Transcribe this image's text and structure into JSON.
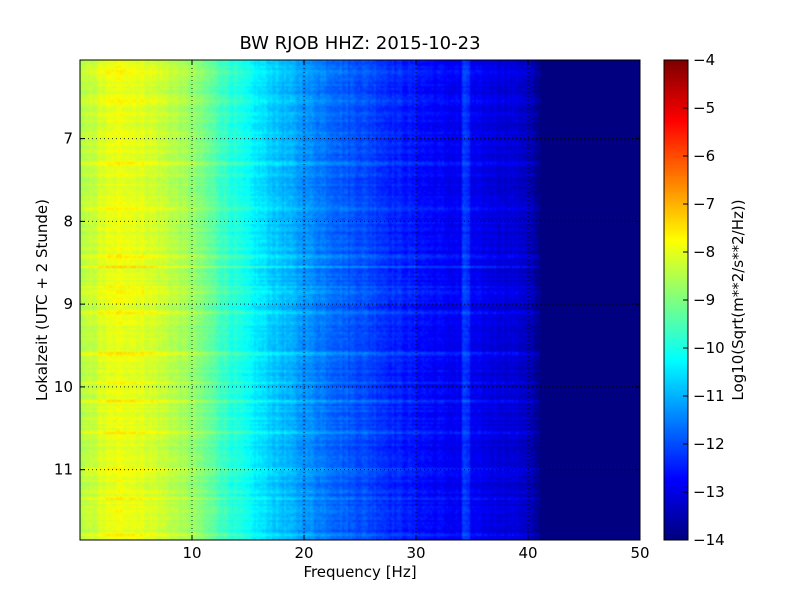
{
  "chart_data": {
    "type": "heatmap",
    "title": "BW RJOB HHZ: 2015-10-23",
    "xlabel": "Frequency [Hz]",
    "ylabel": "Lokalzeit (UTC + 2 Stunde)",
    "xlim": [
      0,
      50
    ],
    "ylim": [
      11.85,
      6.05
    ],
    "y_inverted": true,
    "x_ticks": [
      10,
      20,
      30,
      40,
      50
    ],
    "x_tick_labels": [
      "10",
      "20",
      "30",
      "40",
      "50"
    ],
    "y_ticks": [
      7,
      8,
      9,
      10,
      11
    ],
    "y_tick_labels": [
      "7",
      "8",
      "9",
      "10",
      "11"
    ],
    "grid": true,
    "colormap": "jet",
    "colorbar": {
      "label": "Log10(Sqrt(m**2/s**2/Hz))",
      "range": [
        -14,
        -4
      ],
      "ticks": [
        -4,
        -5,
        -6,
        -7,
        -8,
        -9,
        -10,
        -11,
        -12,
        -13,
        -14
      ],
      "tick_labels": [
        "−4",
        "−5",
        "−6",
        "−7",
        "−8",
        "−9",
        "−10",
        "−11",
        "−12",
        "−13",
        "−14"
      ]
    },
    "spectral_profile": {
      "frequency_hz": [
        0,
        2,
        4,
        6,
        8,
        10,
        12,
        14,
        16,
        18,
        20,
        22,
        24,
        26,
        28,
        30,
        32,
        34,
        36,
        38,
        40,
        41,
        50
      ],
      "log10_amplitude": [
        -8.6,
        -8.1,
        -7.9,
        -8.1,
        -8.4,
        -8.8,
        -9.4,
        -10.0,
        -10.5,
        -10.9,
        -11.3,
        -11.6,
        -11.9,
        -12.1,
        -12.4,
        -12.6,
        -12.8,
        -12.9,
        -13.0,
        -13.1,
        -13.3,
        -14.0,
        -14.0
      ]
    },
    "noise_bands_hour": [
      6.2,
      6.55,
      7.3,
      7.85,
      8.42,
      8.55,
      8.8,
      8.85,
      9.1,
      9.6,
      9.95,
      10.18,
      10.55,
      11.0,
      11.35,
      11.8
    ],
    "line_feature_hz": 34.5
  },
  "colors": {
    "background": "#ffffff",
    "axis": "#000000",
    "grid": "#000000"
  }
}
